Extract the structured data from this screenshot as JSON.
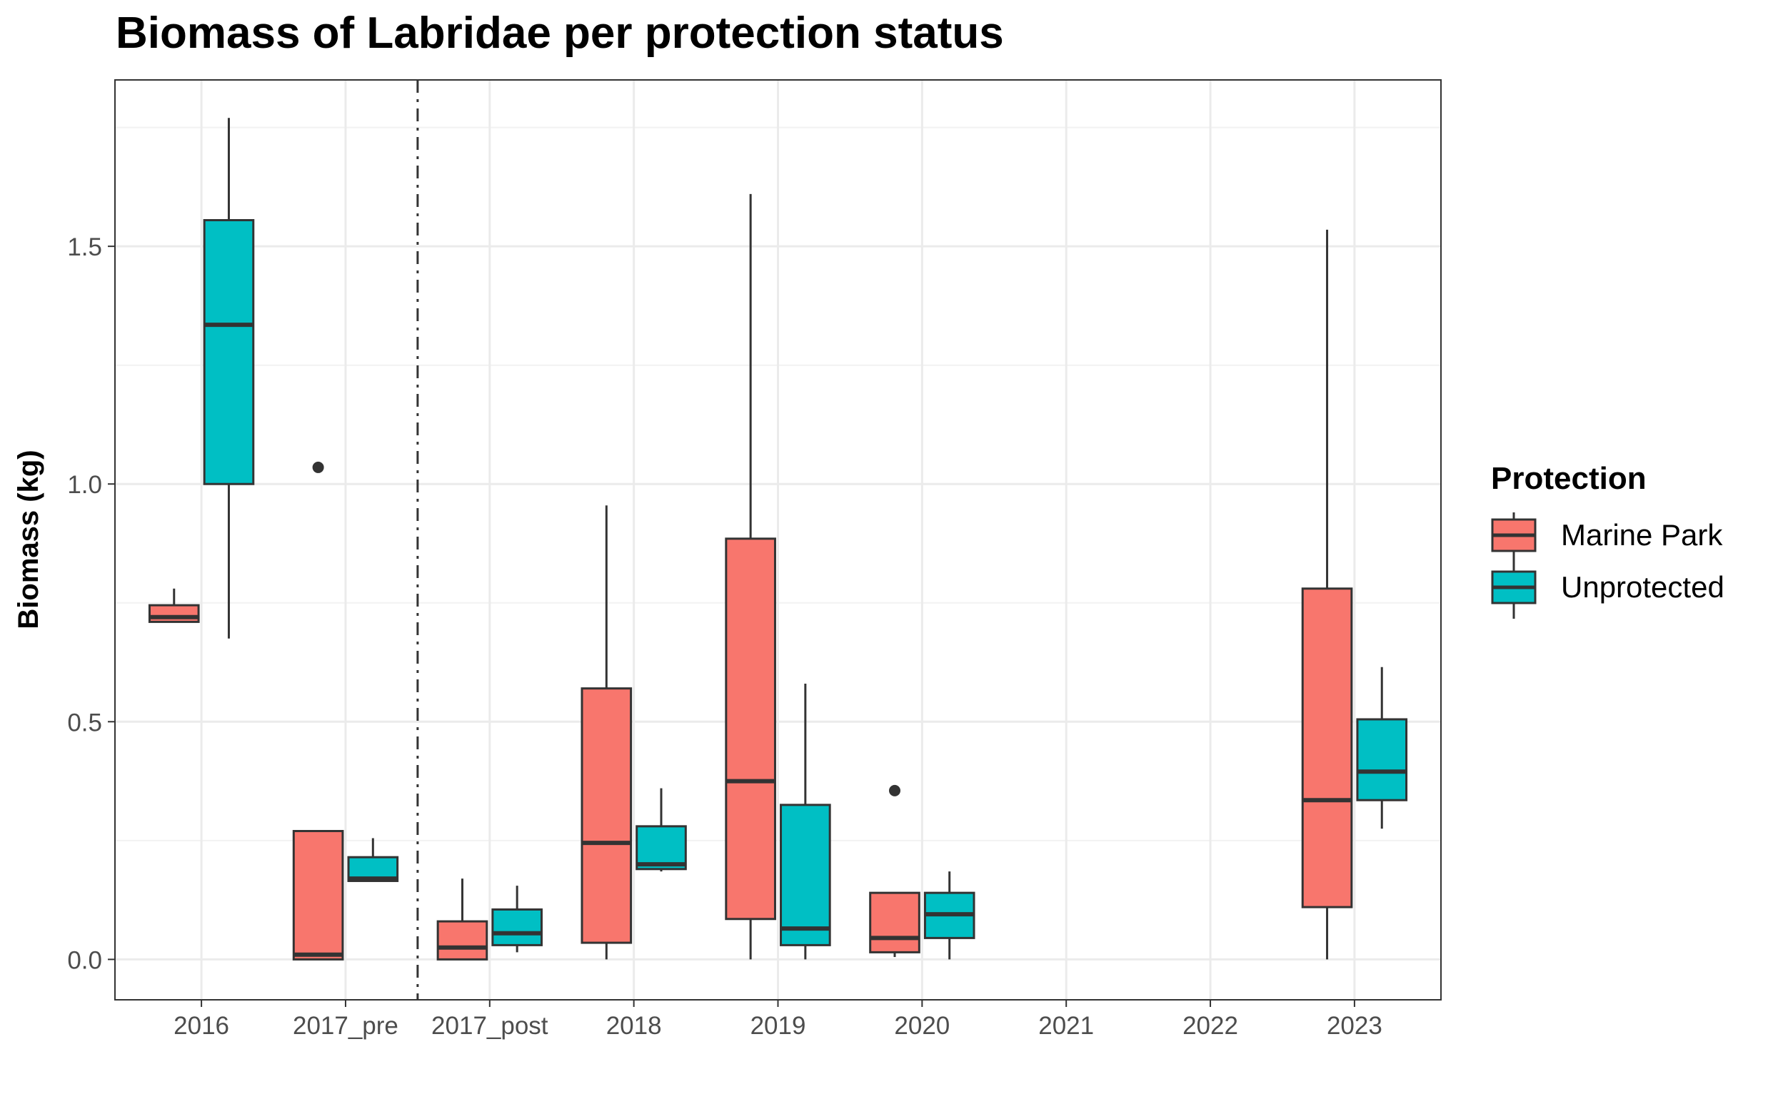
{
  "chart_data": {
    "type": "boxplot",
    "title": "Biomass of Labridae per protection status",
    "xlabel": "",
    "ylabel": "Biomass (kg)",
    "categories": [
      "2016",
      "2017_pre",
      "2017_post",
      "2018",
      "2019",
      "2020",
      "2021",
      "2022",
      "2023"
    ],
    "ylim": [
      -0.085,
      1.85
    ],
    "yticks": [
      0.0,
      0.5,
      1.0,
      1.5
    ],
    "ytick_labels": [
      "0.0",
      "0.5",
      "1.0",
      "1.5"
    ],
    "grid": true,
    "vline": {
      "between": [
        "2017_pre",
        "2017_post"
      ],
      "style": "dashdot"
    },
    "legend": {
      "title": "Protection",
      "placement": "right",
      "entries": [
        "Marine Park",
        "Unprotected"
      ]
    },
    "series": [
      {
        "name": "Marine Park",
        "color": "#F8766D",
        "boxes": [
          {
            "category": "2016",
            "min": 0.71,
            "q1": 0.71,
            "median": 0.72,
            "q3": 0.745,
            "max": 0.78,
            "outliers": []
          },
          {
            "category": "2017_pre",
            "min": 0.0,
            "q1": 0.0,
            "median": 0.01,
            "q3": 0.27,
            "max": 0.27,
            "outliers": [
              1.035
            ]
          },
          {
            "category": "2017_post",
            "min": 0.0,
            "q1": 0.0,
            "median": 0.025,
            "q3": 0.08,
            "max": 0.17,
            "outliers": []
          },
          {
            "category": "2018",
            "min": 0.0,
            "q1": 0.035,
            "median": 0.245,
            "q3": 0.57,
            "max": 0.955,
            "outliers": []
          },
          {
            "category": "2019",
            "min": 0.0,
            "q1": 0.085,
            "median": 0.375,
            "q3": 0.885,
            "max": 1.61,
            "outliers": []
          },
          {
            "category": "2020",
            "min": 0.005,
            "q1": 0.015,
            "median": 0.045,
            "q3": 0.14,
            "max": 0.14,
            "outliers": [
              0.355
            ]
          },
          {
            "category": "2023",
            "min": 0.0,
            "q1": 0.11,
            "median": 0.335,
            "q3": 0.78,
            "max": 1.535,
            "outliers": []
          }
        ]
      },
      {
        "name": "Unprotected",
        "color": "#00BFC4",
        "boxes": [
          {
            "category": "2016",
            "min": 0.675,
            "q1": 1.0,
            "median": 1.335,
            "q3": 1.555,
            "max": 1.77,
            "outliers": []
          },
          {
            "category": "2017_pre",
            "min": 0.165,
            "q1": 0.165,
            "median": 0.17,
            "q3": 0.215,
            "max": 0.255,
            "outliers": []
          },
          {
            "category": "2017_post",
            "min": 0.015,
            "q1": 0.03,
            "median": 0.055,
            "q3": 0.105,
            "max": 0.155,
            "outliers": []
          },
          {
            "category": "2018",
            "min": 0.185,
            "q1": 0.19,
            "median": 0.2,
            "q3": 0.28,
            "max": 0.36,
            "outliers": []
          },
          {
            "category": "2019",
            "min": 0.0,
            "q1": 0.03,
            "median": 0.065,
            "q3": 0.325,
            "max": 0.58,
            "outliers": []
          },
          {
            "category": "2020",
            "min": 0.0,
            "q1": 0.045,
            "median": 0.095,
            "q3": 0.14,
            "max": 0.185,
            "outliers": []
          },
          {
            "category": "2023",
            "min": 0.275,
            "q1": 0.335,
            "median": 0.395,
            "q3": 0.505,
            "max": 0.615,
            "outliers": []
          }
        ]
      }
    ]
  }
}
